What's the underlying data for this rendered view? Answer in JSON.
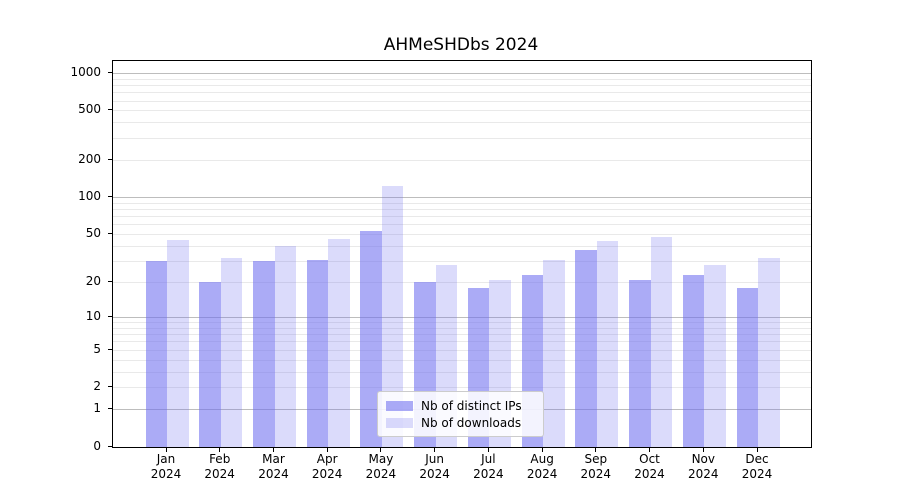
{
  "chart_data": {
    "type": "bar",
    "title": "AHMeSHDbs 2024",
    "categories": [
      "Jan 2024",
      "Feb 2024",
      "Mar 2024",
      "Apr 2024",
      "May 2024",
      "Jun 2024",
      "Jul 2024",
      "Aug 2024",
      "Sep 2024",
      "Oct 2024",
      "Nov 2024",
      "Dec 2024"
    ],
    "category_months": [
      "Jan",
      "Feb",
      "Mar",
      "Apr",
      "May",
      "Jun",
      "Jul",
      "Aug",
      "Sep",
      "Oct",
      "Nov",
      "Dec"
    ],
    "category_year": "2024",
    "series": [
      {
        "name": "Nb of distinct IPs",
        "color": "rgba(110,110,240,0.58)",
        "values": [
          30,
          20,
          30,
          31,
          53,
          20,
          18,
          23,
          37,
          21,
          23,
          18
        ]
      },
      {
        "name": "Nb of downloads",
        "color": "rgba(110,110,240,0.25)",
        "values": [
          45,
          32,
          40,
          46,
          125,
          28,
          21,
          31,
          44,
          48,
          28,
          32
        ]
      }
    ],
    "xlabel": "",
    "ylabel": "",
    "yscale": "log10(1+y)",
    "yticks": [
      0,
      1,
      2,
      5,
      10,
      20,
      50,
      100,
      200,
      500,
      1000
    ],
    "ylim": [
      0,
      1260
    ],
    "grid": {
      "major_lines": [
        1,
        10,
        100,
        1000
      ],
      "minor_lines": [
        2,
        3,
        4,
        5,
        6,
        7,
        8,
        9,
        20,
        30,
        40,
        50,
        60,
        70,
        80,
        90,
        200,
        300,
        400,
        500,
        600,
        700,
        800,
        900
      ],
      "major_color": "#bdbdbd",
      "minor_color": "#e9e9e9"
    },
    "legend": {
      "position": "lower-center",
      "entries": [
        "Nb of distinct IPs",
        "Nb of downloads"
      ]
    }
  },
  "colors": {
    "background": "#ffffff",
    "spine": "#000000",
    "bar_distinct_ips": "rgba(110,110,240,0.58)",
    "bar_downloads": "rgba(110,110,240,0.25)"
  }
}
